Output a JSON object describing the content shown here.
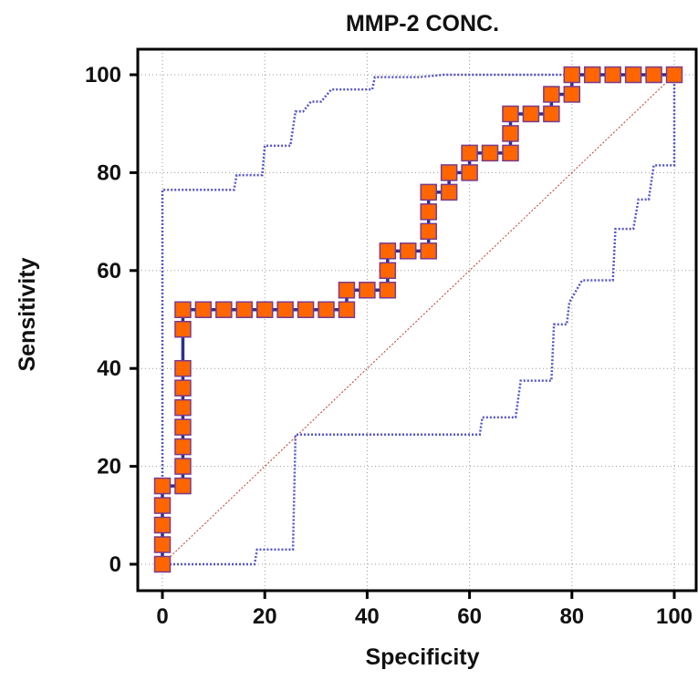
{
  "chart_data": {
    "type": "line",
    "title": "MMP-2 CONC.",
    "xlabel": "Specificity",
    "ylabel": "Sensitivity",
    "xlim": [
      0,
      100
    ],
    "ylim": [
      0,
      100
    ],
    "x_ticks": [
      "0",
      "20",
      "40",
      "60",
      "80",
      "100"
    ],
    "y_ticks": [
      "0",
      "20",
      "40",
      "60",
      "80",
      "100"
    ],
    "grid": true,
    "legend": "none",
    "colors": {
      "roc_line": "#2e2e8f",
      "marker_fill": "#ff6600",
      "marker_stroke": "#7a3b8c",
      "ci_band": "#5555c8",
      "reference": "#c0392b",
      "grid": "#9a9a9a"
    },
    "series": [
      {
        "role": "roc",
        "x": [
          0,
          0,
          0,
          0,
          0,
          4,
          4,
          4,
          4,
          4,
          4,
          4,
          4,
          4,
          8,
          12,
          16,
          20,
          24,
          28,
          32,
          36,
          36,
          40,
          44,
          44,
          44,
          48,
          52,
          52,
          52,
          52,
          56,
          56,
          60,
          60,
          64,
          68,
          68,
          68,
          72,
          76,
          76,
          80,
          80,
          84,
          88,
          92,
          96,
          100
        ],
        "y": [
          0,
          4,
          8,
          12,
          16,
          16,
          20,
          24,
          28,
          32,
          36,
          40,
          48,
          52,
          52,
          52,
          52,
          52,
          52,
          52,
          52,
          52,
          56,
          56,
          56,
          60,
          64,
          64,
          64,
          68,
          72,
          76,
          76,
          80,
          80,
          84,
          84,
          84,
          88,
          92,
          92,
          92,
          96,
          96,
          100,
          100,
          100,
          100,
          100,
          100
        ]
      },
      {
        "role": "ci_upper",
        "x": [
          0,
          0,
          1,
          5,
          10,
          14,
          14.5,
          19.5,
          20,
          25,
          26,
          27.5,
          29,
          31,
          33,
          36,
          41,
          41.5,
          50,
          55,
          100
        ],
        "y": [
          0,
          76.5,
          76.5,
          76.5,
          76.5,
          76.5,
          79.5,
          79.5,
          85.5,
          85.5,
          92.5,
          92.5,
          94.5,
          94.5,
          97,
          97,
          97,
          99.5,
          99.5,
          100,
          100
        ]
      },
      {
        "role": "ci_lower",
        "x": [
          0,
          18,
          18.5,
          25.5,
          26,
          62,
          62.5,
          69,
          70,
          76,
          76.5,
          79,
          79.5,
          82,
          88,
          88.5,
          92,
          93,
          95,
          96,
          100,
          100
        ],
        "y": [
          0,
          0,
          3,
          3,
          26.5,
          26.5,
          30,
          30,
          37.5,
          37.5,
          49,
          49,
          53.5,
          58,
          58,
          68.5,
          68.5,
          74.5,
          74.5,
          81.5,
          81.5,
          100
        ]
      },
      {
        "role": "reference",
        "x": [
          0,
          100
        ],
        "y": [
          0,
          100
        ]
      }
    ]
  }
}
